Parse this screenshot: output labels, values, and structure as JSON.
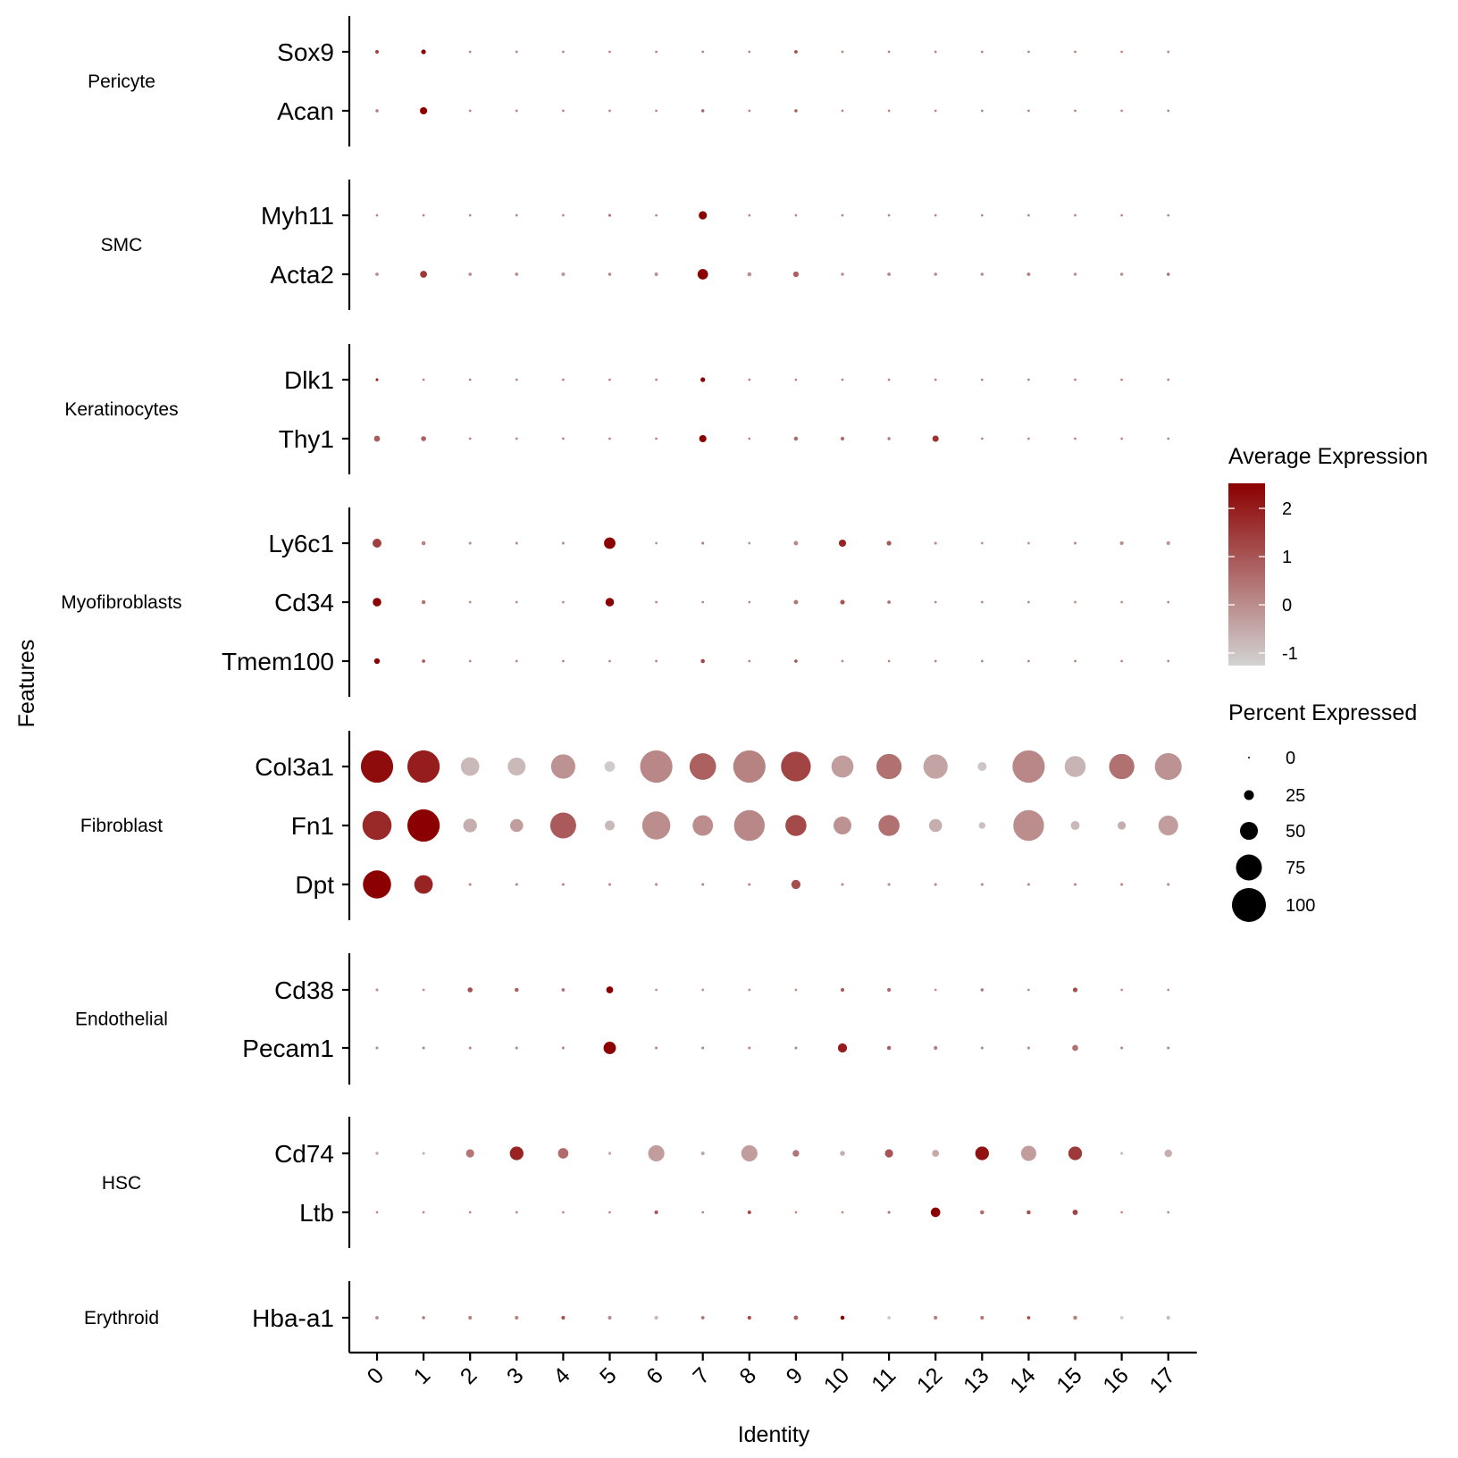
{
  "chart_data": {
    "type": "dotplot",
    "xlabel": "Identity",
    "ylabel": "Features",
    "x": [
      "0",
      "1",
      "2",
      "3",
      "4",
      "5",
      "6",
      "7",
      "8",
      "9",
      "10",
      "11",
      "12",
      "13",
      "14",
      "15",
      "16",
      "17"
    ],
    "color_scale": {
      "title": "Average Expression",
      "low": "#d3d3d3",
      "high": "#8b0000",
      "range": [
        -1.26,
        2.52
      ],
      "ticks": [
        "2",
        "1",
        "0",
        "-1"
      ],
      "tick_values": [
        2,
        1,
        0,
        -1
      ]
    },
    "size_scale": {
      "title": "Percent Expressed",
      "ticks": [
        "0",
        "25",
        "50",
        "75",
        "100"
      ],
      "tick_values": [
        0,
        25,
        50,
        75,
        100
      ]
    },
    "groups": [
      {
        "name": "Pericyte",
        "genes": [
          {
            "gene": "Sox9",
            "pct": [
              6,
              9,
              2,
              2,
              2,
              2,
              2,
              2,
              2,
              5,
              2,
              2,
              2,
              2,
              2,
              2,
              2,
              2
            ],
            "avg": [
              1.3,
              2.5,
              0.2,
              0.2,
              0.2,
              0.2,
              0.2,
              0.2,
              0.2,
              1.2,
              0.2,
              0.2,
              0.2,
              0.2,
              0.2,
              0.2,
              0.2,
              0.2
            ]
          },
          {
            "gene": "Acan",
            "pct": [
              4,
              17,
              2,
              2,
              2,
              2,
              2,
              4,
              2,
              4,
              2,
              2,
              2,
              2,
              2,
              2,
              2,
              2
            ],
            "avg": [
              0.3,
              2.5,
              0.2,
              0.2,
              0.2,
              0.2,
              0.2,
              0.8,
              0.2,
              1.0,
              0.2,
              0.2,
              0.2,
              0.2,
              0.2,
              0.2,
              0.2,
              0.2
            ]
          }
        ]
      },
      {
        "name": "SMC",
        "genes": [
          {
            "gene": "Myh11",
            "pct": [
              2,
              2,
              2,
              2,
              2,
              3,
              2,
              20,
              2,
              2,
              2,
              2,
              2,
              2,
              2,
              2,
              2,
              2
            ],
            "avg": [
              0.2,
              0.2,
              0.2,
              0.2,
              0.2,
              0.6,
              0.2,
              2.5,
              0.2,
              0.2,
              0.2,
              0.2,
              0.2,
              0.2,
              0.2,
              0.2,
              0.2,
              0.2
            ]
          },
          {
            "gene": "Acta2",
            "pct": [
              5,
              16,
              5,
              5,
              6,
              4,
              6,
              27,
              7,
              12,
              4,
              5,
              4,
              4,
              5,
              4,
              4,
              4
            ],
            "avg": [
              0,
              1.5,
              0,
              0,
              -0.2,
              0.2,
              -0.1,
              2.5,
              0,
              0.8,
              0,
              0.1,
              0.1,
              0.1,
              0.3,
              0,
              0,
              0.6
            ]
          }
        ]
      },
      {
        "name": "Keratinocytes",
        "genes": [
          {
            "gene": "Dlk1",
            "pct": [
              3,
              2,
              2,
              2,
              2,
              2,
              2,
              9,
              2,
              2,
              2,
              2,
              2,
              2,
              2,
              2,
              2,
              2
            ],
            "avg": [
              2.0,
              0.2,
              0.2,
              0.2,
              0.2,
              0.2,
              0.2,
              2.5,
              0.2,
              0.2,
              0.2,
              0.2,
              0.2,
              0.2,
              0.2,
              0.2,
              0.2,
              0.2
            ]
          },
          {
            "gene": "Thy1",
            "pct": [
              13,
              10,
              2,
              2,
              2,
              2,
              2,
              17,
              2,
              7,
              6,
              4,
              14,
              2,
              2,
              2,
              2,
              2
            ],
            "avg": [
              0.9,
              0.8,
              0.2,
              0.2,
              0.2,
              0.2,
              0.2,
              2.5,
              0.2,
              0.6,
              0.6,
              0.3,
              1.6,
              0.2,
              0.2,
              0.2,
              0.2,
              0.2
            ]
          }
        ]
      },
      {
        "name": "Myofibroblasts",
        "genes": [
          {
            "gene": "Ly6c1",
            "pct": [
              22,
              7,
              3,
              3,
              3,
              30,
              2,
              3,
              2,
              8,
              17,
              9,
              3,
              2,
              2,
              3,
              6,
              6
            ],
            "avg": [
              1.4,
              0.2,
              0,
              0,
              0,
              2.5,
              0,
              0.3,
              0,
              0.1,
              1.9,
              0.9,
              0,
              0,
              0,
              0,
              0,
              -0.1
            ]
          },
          {
            "gene": "Cd34",
            "pct": [
              21,
              7,
              2,
              2,
              2,
              21,
              2,
              2,
              2,
              8,
              9,
              5,
              2,
              2,
              2,
              2,
              2,
              2
            ],
            "avg": [
              2.5,
              0.4,
              0.1,
              0.1,
              0.1,
              2.5,
              0.1,
              0.1,
              0.1,
              0.4,
              1.0,
              0.5,
              0.1,
              0.1,
              0.1,
              0.1,
              0.1,
              0.1
            ]
          },
          {
            "gene": "Tmem100",
            "pct": [
              12,
              5,
              2,
              2,
              2,
              2,
              2,
              7,
              2,
              5,
              2,
              2,
              2,
              2,
              2,
              2,
              2,
              2
            ],
            "avg": [
              2.5,
              0.9,
              0.2,
              0.2,
              0.2,
              0.2,
              0.2,
              1.3,
              0.2,
              0.9,
              0.2,
              0.2,
              0.2,
              0.2,
              0.2,
              0.2,
              0.2,
              0.2
            ]
          }
        ]
      },
      {
        "name": "Fibroblast",
        "genes": [
          {
            "gene": "Col3a1",
            "pct": [
              95,
              95,
              52,
              50,
              70,
              27,
              95,
              77,
              95,
              87,
              63,
              73,
              70,
              22,
              95,
              60,
              73,
              78
            ],
            "avg": [
              2.3,
              2.0,
              -0.8,
              -0.8,
              -0.1,
              -1.1,
              0.1,
              0.8,
              0.2,
              1.3,
              -0.3,
              0.5,
              -0.4,
              -1.0,
              0.1,
              -0.7,
              0.5,
              -0.1
            ]
          },
          {
            "gene": "Fn1",
            "pct": [
              85,
              95,
              37,
              35,
              75,
              25,
              82,
              58,
              90,
              60,
              50,
              60,
              35,
              15,
              90,
              22,
              20,
              56
            ],
            "avg": [
              1.8,
              2.5,
              -0.6,
              -0.3,
              0.9,
              -0.8,
              0,
              0,
              0.1,
              1.2,
              -0.1,
              0.5,
              -0.6,
              -0.9,
              0,
              -0.8,
              -0.6,
              -0.3
            ]
          },
          {
            "gene": "Dpt",
            "pct": [
              82,
              52,
              3,
              3,
              3,
              3,
              3,
              3,
              3,
              23,
              3,
              3,
              3,
              3,
              3,
              3,
              3,
              3
            ],
            "avg": [
              2.5,
              1.9,
              0.1,
              0.1,
              0.1,
              0.1,
              0.1,
              0.1,
              0.1,
              1.1,
              0.1,
              0.1,
              0.1,
              0.1,
              0.1,
              0.1,
              0.1,
              0.1
            ]
          }
        ]
      },
      {
        "name": "Endothelial",
        "genes": [
          {
            "gene": "Cd38",
            "pct": [
              3,
              2,
              10,
              7,
              5,
              16,
              2,
              2,
              2,
              2,
              6,
              6,
              2,
              4,
              2,
              9,
              2,
              2
            ],
            "avg": [
              0,
              0,
              1.1,
              0.8,
              0.4,
              2.5,
              0,
              0,
              0,
              0,
              0.9,
              0.7,
              0,
              0.4,
              0,
              1.1,
              0,
              0
            ]
          },
          {
            "gene": "Pecam1",
            "pct": [
              3,
              3,
              3,
              3,
              3,
              33,
              3,
              3,
              3,
              3,
              23,
              7,
              6,
              3,
              3,
              13,
              3,
              3
            ],
            "avg": [
              0.1,
              0.1,
              0.1,
              0.1,
              0.1,
              2.5,
              0.1,
              0.1,
              0.1,
              0.1,
              2.0,
              0.8,
              0.3,
              0.1,
              0.1,
              0.5,
              0.1,
              0.1
            ]
          }
        ]
      },
      {
        "name": "HSC",
        "genes": [
          {
            "gene": "Cd74",
            "pct": [
              4,
              3,
              20,
              37,
              27,
              4,
              45,
              6,
              45,
              15,
              10,
              20,
              16,
              37,
              42,
              37,
              3,
              18
            ],
            "avg": [
              -0.6,
              -0.6,
              0.4,
              1.9,
              0.6,
              -0.6,
              -0.3,
              -0.5,
              -0.3,
              0.4,
              -0.6,
              1.0,
              -0.5,
              2.2,
              -0.3,
              1.5,
              -0.7,
              -0.6
            ]
          },
          {
            "gene": "Ltb",
            "pct": [
              2,
              2,
              2,
              2,
              2,
              2,
              6,
              2,
              6,
              2,
              2,
              3,
              24,
              7,
              7,
              11,
              2,
              2
            ],
            "avg": [
              0.1,
              0.1,
              0.1,
              0.1,
              0.1,
              0.1,
              1.0,
              0.1,
              1.1,
              0.1,
              0.1,
              0.5,
              2.5,
              0.6,
              1.1,
              1.3,
              0.1,
              0.1
            ]
          }
        ]
      },
      {
        "name": "Erythroid",
        "genes": [
          {
            "gene": "Hba-a1",
            "pct": [
              5,
              4,
              6,
              6,
              6,
              6,
              6,
              5,
              6,
              8,
              7,
              5,
              6,
              6,
              5,
              7,
              5,
              6
            ],
            "avg": [
              0.1,
              0.4,
              0.2,
              0.2,
              1.1,
              0.0,
              -0.7,
              0.5,
              1.2,
              0.8,
              2.5,
              -1.1,
              0.3,
              0.4,
              1.1,
              0.2,
              -1.1,
              -0.8
            ]
          }
        ]
      }
    ]
  }
}
